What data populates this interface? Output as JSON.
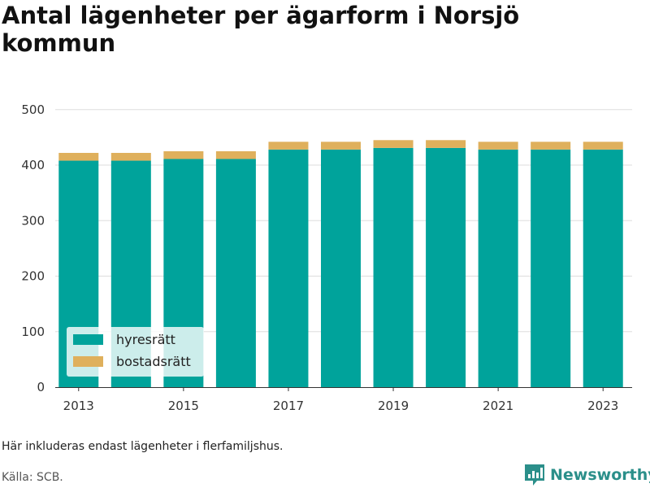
{
  "title": "Antal lägenheter per ägarform i Norsjö kommun",
  "note": "Här inkluderas endast lägenheter i flerfamiljshus.",
  "source": "Källa: SCB.",
  "brand": {
    "name": "Newsworthy",
    "color": "#2b8f8a"
  },
  "chart_data": {
    "type": "bar",
    "stacked": true,
    "categories": [
      "2013",
      "2014",
      "2015",
      "2016",
      "2017",
      "2018",
      "2019",
      "2020",
      "2021",
      "2022",
      "2023"
    ],
    "x_tick_labels": [
      "2013",
      "2015",
      "2017",
      "2019",
      "2021",
      "2023"
    ],
    "y_ticks": [
      "0",
      "100",
      "200",
      "300",
      "400",
      "500"
    ],
    "ylim": [
      0,
      520
    ],
    "grid": true,
    "legend_position": "bottom-left",
    "series": [
      {
        "name": "hyresrätt",
        "color": "#00a39b",
        "values": [
          408,
          408,
          411,
          411,
          428,
          428,
          431,
          431,
          428,
          428,
          428
        ]
      },
      {
        "name": "bostadsrätt",
        "color": "#dfb05c",
        "values": [
          14,
          14,
          14,
          14,
          14,
          14,
          14,
          14,
          14,
          14,
          14
        ]
      }
    ]
  }
}
